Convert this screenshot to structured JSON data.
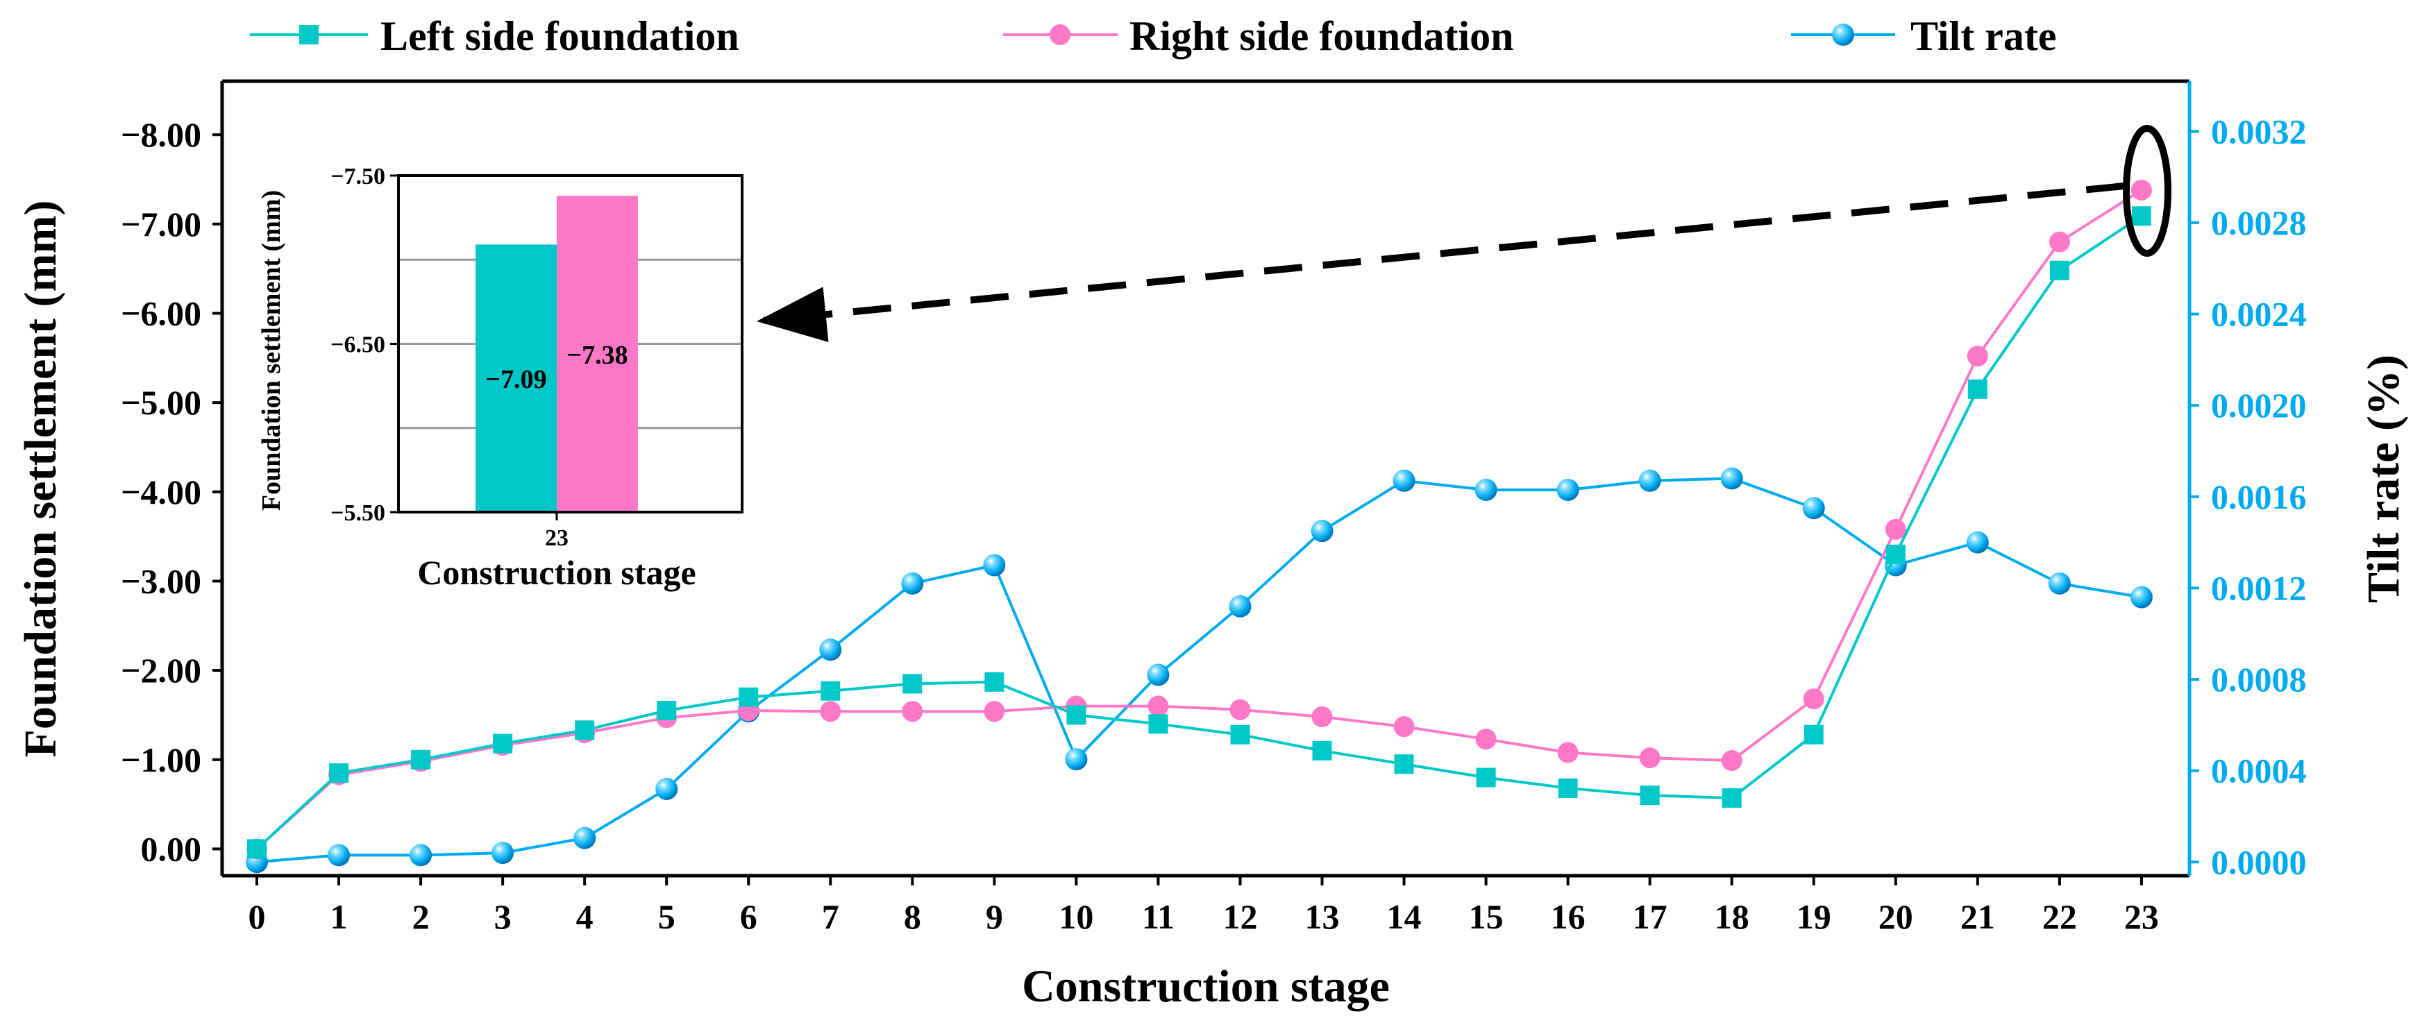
{
  "chart_data": {
    "type": "line",
    "xlabel": "Construction stage",
    "ylabel": "Foundation settlement (mm)",
    "y2label": "Tilt rate (%)",
    "x": [
      0,
      1,
      2,
      3,
      4,
      5,
      6,
      7,
      8,
      9,
      10,
      11,
      12,
      13,
      14,
      15,
      16,
      17,
      18,
      19,
      20,
      21,
      22,
      23
    ],
    "x_ticks": [
      "0",
      "1",
      "2",
      "3",
      "4",
      "5",
      "6",
      "7",
      "8",
      "9",
      "10",
      "11",
      "12",
      "13",
      "14",
      "15",
      "16",
      "17",
      "18",
      "19",
      "20",
      "21",
      "22",
      "23"
    ],
    "ylim": [
      0.3,
      -8.6
    ],
    "y_ticks": [
      "0.00",
      "−1.00",
      "−2.00",
      "−3.00",
      "−4.00",
      "−5.00",
      "−6.00",
      "−7.00",
      "−8.00"
    ],
    "y2lim": [
      -6e-05,
      0.00342
    ],
    "y2_ticks": [
      "0.0000",
      "0.0004",
      "0.0008",
      "0.0012",
      "0.0016",
      "0.0020",
      "0.0024",
      "0.0028",
      "0.0032"
    ],
    "series": [
      {
        "name": "Left side foundation",
        "axis": "left",
        "color": "#00c8c8",
        "marker": "square",
        "values": [
          0.0,
          -0.85,
          -1.0,
          -1.18,
          -1.33,
          -1.55,
          -1.7,
          -1.77,
          -1.85,
          -1.87,
          -1.5,
          -1.4,
          -1.28,
          -1.1,
          -0.95,
          -0.8,
          -0.68,
          -0.6,
          -0.57,
          -1.28,
          -3.3,
          -5.15,
          -6.48,
          -7.09
        ]
      },
      {
        "name": "Right side foundation",
        "axis": "left",
        "color": "#ff78c8",
        "marker": "circle",
        "values": [
          0.0,
          -0.83,
          -0.98,
          -1.16,
          -1.3,
          -1.47,
          -1.55,
          -1.54,
          -1.54,
          -1.54,
          -1.6,
          -1.6,
          -1.56,
          -1.48,
          -1.37,
          -1.23,
          -1.08,
          -1.02,
          -0.99,
          -1.68,
          -3.58,
          -5.52,
          -6.8,
          -7.38
        ]
      },
      {
        "name": "Tilt rate",
        "axis": "right",
        "color": "#00aaee",
        "marker": "sphere",
        "values": [
          0.0,
          3e-05,
          3e-05,
          4e-05,
          0.000105,
          0.00032,
          0.00066,
          0.00093,
          0.00122,
          0.0013,
          0.00045,
          0.00082,
          0.00112,
          0.00145,
          0.00167,
          0.00163,
          0.00163,
          0.00167,
          0.00168,
          0.00155,
          0.0013,
          0.0014,
          0.00122,
          0.00116
        ]
      }
    ],
    "legend": [
      "Left side foundation",
      "Right side foundation",
      "Tilt rate"
    ],
    "legend_position": "top",
    "inset": {
      "type": "bar",
      "categories": [
        "23"
      ],
      "xlabel": "Construction stage",
      "ylabel": "Foundation settlement (mm)",
      "ylim": [
        -5.5,
        -7.5
      ],
      "y_ticks": [
        "−5.50",
        "−6.50",
        "−7.50"
      ],
      "grid_values": [
        -6.0,
        -6.5,
        -7.0
      ],
      "bars": [
        {
          "series": "Left side foundation",
          "value": -7.09,
          "label": "−7.09",
          "color": "#00c8c8"
        },
        {
          "series": "Right side foundation",
          "value": -7.38,
          "label": "−7.38",
          "color": "#ff78c8"
        }
      ]
    }
  }
}
